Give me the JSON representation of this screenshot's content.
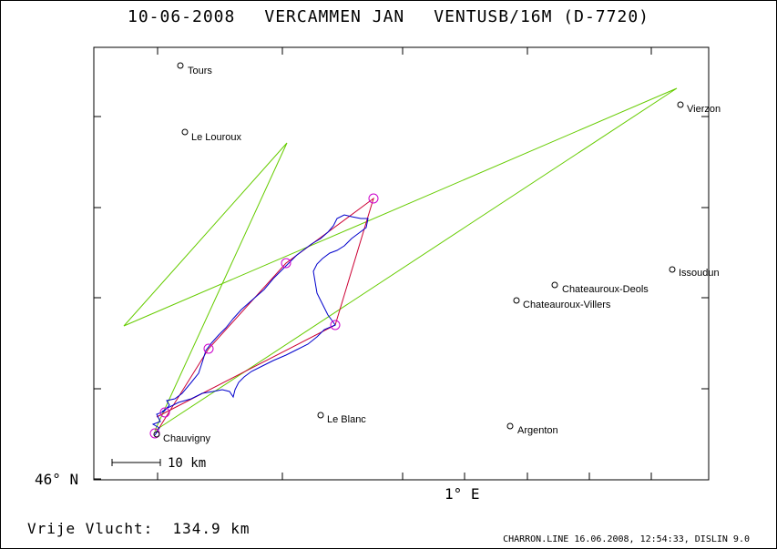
{
  "header": {
    "date": "10-06-2008",
    "pilot": "VERCAMMEN JAN",
    "glider": "VENTUSB/16M (D-7720)"
  },
  "axes": {
    "lat_label": "46° N",
    "lon_label": "1° E"
  },
  "scale_bar": {
    "label": "10 km"
  },
  "places": [
    {
      "name": "Tours"
    },
    {
      "name": "Le Louroux"
    },
    {
      "name": "Vierzon"
    },
    {
      "name": "Issoudun"
    },
    {
      "name": "Chateauroux-Deols"
    },
    {
      "name": "Chateauroux-Villers"
    },
    {
      "name": "Le Blanc"
    },
    {
      "name": "Argenton"
    },
    {
      "name": "Chauvigny"
    }
  ],
  "footer": {
    "distance_text": "Vrije Vlucht:  134.9 km",
    "credits": "CHARRON.LINE 16.06.2008, 12:54:33, DISLIN 9.0"
  },
  "colors": {
    "track": "#0000cc",
    "task_line": "#66cc00",
    "optimized_route": "#cc0033",
    "turnpoint_circle": "#cc00cc"
  }
}
